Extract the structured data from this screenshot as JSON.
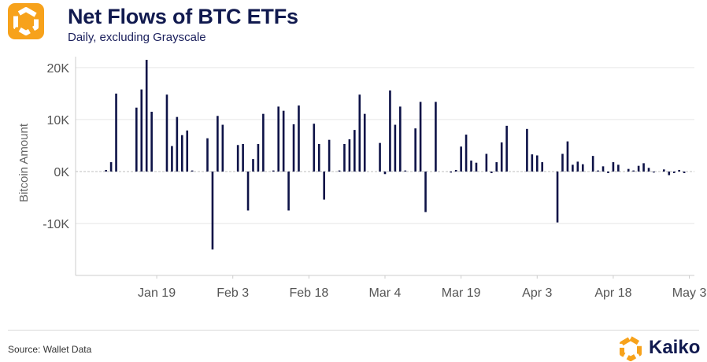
{
  "header": {
    "title": "Net Flows of BTC ETFs",
    "subtitle": "Daily, excluding Grayscale",
    "logo_icon": "kaiko-logo-icon"
  },
  "footer": {
    "source": "Source: Wallet Data",
    "brand": "Kaiko"
  },
  "colors": {
    "bar": "#0d1247",
    "title": "#111a4f",
    "logo_orange": "#f7a21b",
    "grid": "#e6e6e6",
    "zero_line": "#bfbfbf"
  },
  "chart_data": {
    "type": "bar",
    "title": "Net Flows of BTC ETFs",
    "subtitle": "Daily, excluding Grayscale",
    "xlabel": "",
    "ylabel": "Bitcoin Amount",
    "ylim": [
      -20000,
      21500
    ],
    "x_range": [
      "2024-01-03",
      "2024-05-04"
    ],
    "yticks": [
      {
        "value": 20000,
        "label": "20K"
      },
      {
        "value": 10000,
        "label": "10K"
      },
      {
        "value": 0,
        "label": "0K"
      },
      {
        "value": -10000,
        "label": "-10K"
      }
    ],
    "xticks": [
      {
        "date": "2024-01-19",
        "label": "Jan 19"
      },
      {
        "date": "2024-02-03",
        "label": "Feb 3"
      },
      {
        "date": "2024-02-18",
        "label": "Feb 18"
      },
      {
        "date": "2024-03-04",
        "label": "Mar 4"
      },
      {
        "date": "2024-03-19",
        "label": "Mar 19"
      },
      {
        "date": "2024-04-03",
        "label": "Apr 3"
      },
      {
        "date": "2024-04-18",
        "label": "Apr 18"
      },
      {
        "date": "2024-05-03",
        "label": "May 3"
      }
    ],
    "grid": true,
    "legend": "none",
    "series": [
      {
        "x": [
          "2024-01-09",
          "2024-01-10",
          "2024-01-11",
          "2024-01-15",
          "2024-01-16",
          "2024-01-17",
          "2024-01-18",
          "2024-01-21",
          "2024-01-22",
          "2024-01-23",
          "2024-01-24",
          "2024-01-25",
          "2024-01-26",
          "2024-01-29",
          "2024-01-30",
          "2024-01-31",
          "2024-02-01",
          "2024-02-04",
          "2024-02-05",
          "2024-02-06",
          "2024-02-07",
          "2024-02-08",
          "2024-02-09",
          "2024-02-11",
          "2024-02-12",
          "2024-02-13",
          "2024-02-14",
          "2024-02-15",
          "2024-02-16",
          "2024-02-19",
          "2024-02-20",
          "2024-02-21",
          "2024-02-22",
          "2024-02-24",
          "2024-02-25",
          "2024-02-26",
          "2024-02-27",
          "2024-02-28",
          "2024-02-29",
          "2024-03-03",
          "2024-03-04",
          "2024-03-05",
          "2024-03-06",
          "2024-03-07",
          "2024-03-08",
          "2024-03-10",
          "2024-03-11",
          "2024-03-12",
          "2024-03-14",
          "2024-03-17",
          "2024-03-18",
          "2024-03-19",
          "2024-03-20",
          "2024-03-21",
          "2024-03-22",
          "2024-03-24",
          "2024-03-25",
          "2024-03-26",
          "2024-03-27",
          "2024-03-28",
          "2024-04-01",
          "2024-04-02",
          "2024-04-03",
          "2024-04-04",
          "2024-04-07",
          "2024-04-08",
          "2024-04-09",
          "2024-04-10",
          "2024-04-11",
          "2024-04-12",
          "2024-04-14",
          "2024-04-15",
          "2024-04-16",
          "2024-04-17",
          "2024-04-18",
          "2024-04-19",
          "2024-04-21",
          "2024-04-22",
          "2024-04-23",
          "2024-04-24",
          "2024-04-25",
          "2024-04-26",
          "2024-04-28",
          "2024-04-29",
          "2024-04-30",
          "2024-05-01",
          "2024-05-02"
        ],
        "values": [
          300,
          1800,
          15000,
          12300,
          15800,
          21500,
          11500,
          14800,
          4900,
          10500,
          7000,
          7900,
          200,
          6400,
          -15000,
          10700,
          9000,
          5100,
          5300,
          -7500,
          2400,
          5300,
          11100,
          200,
          12500,
          11700,
          -7500,
          9100,
          12700,
          9200,
          5300,
          -5400,
          6100,
          200,
          5300,
          6200,
          8000,
          14800,
          11100,
          5500,
          -500,
          15600,
          9000,
          12500,
          200,
          8300,
          13400,
          -7800,
          13400,
          -200,
          300,
          4800,
          7100,
          2100,
          1700,
          3400,
          -300,
          1800,
          5600,
          8800,
          8200,
          3300,
          3100,
          1800,
          -9800,
          3400,
          5800,
          1300,
          1900,
          1400,
          3000,
          200,
          1000,
          -300,
          1800,
          1300,
          500,
          200,
          1100,
          1600,
          700,
          -200,
          400,
          -700,
          -300,
          300,
          -300
        ]
      }
    ]
  }
}
